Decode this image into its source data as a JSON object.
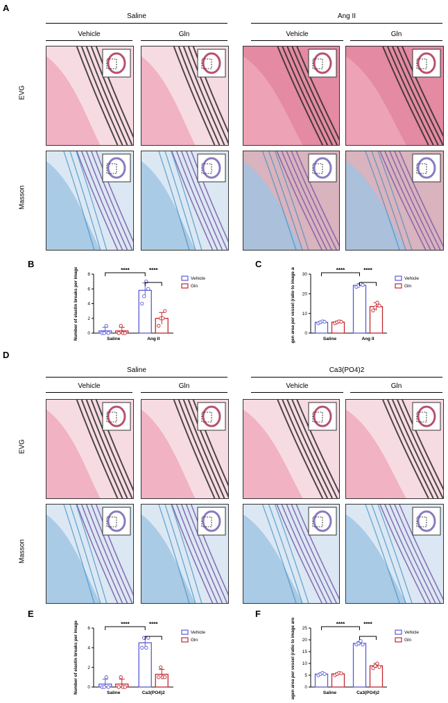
{
  "panels": {
    "A": "A",
    "B": "B",
    "C": "C",
    "D": "D",
    "E": "E",
    "F": "F"
  },
  "panel_A": {
    "groups": [
      "Saline",
      "Ang II"
    ],
    "subgroups": [
      "Vehicle",
      "Gln",
      "Vehicle",
      "Gln"
    ],
    "rows": [
      "EVG",
      "Masson"
    ]
  },
  "panel_D": {
    "groups": [
      "Saline",
      "Ca3(PO4)2"
    ],
    "subgroups": [
      "Vehicle",
      "Gln",
      "Vehicle",
      "Gln"
    ],
    "rows": [
      "EVG",
      "Masson"
    ]
  },
  "colors": {
    "vehicle": "#5a5ad6",
    "gln": "#c0272d",
    "evg_bg": "#f3c9d6",
    "masson_bg": "#b9d3ea",
    "fiber": "#2b2b2b"
  },
  "chart_data": [
    {
      "id": "B",
      "type": "bar",
      "categories": [
        "Saline",
        "Ang II"
      ],
      "ylabel": "Number of elastin breaks per image",
      "ylim": [
        0,
        8
      ],
      "yticks": [
        0,
        2,
        4,
        6,
        8
      ],
      "legend": "top-right",
      "significance": [
        "****",
        "****"
      ],
      "series": [
        {
          "name": "Vehicle",
          "values": [
            0.3,
            5.8
          ],
          "err": [
            0.5,
            1.0
          ],
          "points": [
            [
              0,
              0,
              1,
              0
            ],
            [
              4,
              5,
              7,
              6
            ]
          ]
        },
        {
          "name": "Gln",
          "values": [
            0.3,
            2.0
          ],
          "err": [
            0.5,
            0.8
          ],
          "points": [
            [
              0,
              1,
              0,
              0
            ],
            [
              1,
              2,
              2,
              3
            ]
          ]
        }
      ]
    },
    {
      "id": "C",
      "type": "bar",
      "categories": [
        "Saline",
        "Ang II"
      ],
      "ylabel": "Collagen area per vessel (ratio to image area, %)",
      "ylim": [
        0,
        30
      ],
      "yticks": [
        0,
        10,
        20,
        30
      ],
      "legend": "top-right",
      "significance": [
        "****",
        "****"
      ],
      "series": [
        {
          "name": "Vehicle",
          "values": [
            5.5,
            24.3
          ],
          "err": [
            0.6,
            1.0
          ],
          "points": [
            [
              5,
              5.5,
              6,
              5.8
            ],
            [
              23.5,
              24,
              25,
              24.5
            ]
          ]
        },
        {
          "name": "Gln",
          "values": [
            5.6,
            13.5
          ],
          "err": [
            0.6,
            2.0
          ],
          "points": [
            [
              5,
              5.5,
              6,
              5.8
            ],
            [
              11.5,
              13,
              15.5,
              14
            ]
          ]
        }
      ]
    },
    {
      "id": "E",
      "type": "bar",
      "categories": [
        "Saline",
        "Ca3(PO4)2"
      ],
      "ylabel": "Number of elastin breaks per image",
      "ylim": [
        0,
        6
      ],
      "yticks": [
        0,
        2,
        4,
        6
      ],
      "legend": "top-right",
      "significance": [
        "****",
        "****"
      ],
      "series": [
        {
          "name": "Vehicle",
          "values": [
            0.3,
            4.5
          ],
          "err": [
            0.5,
            0.6
          ],
          "points": [
            [
              0,
              0,
              1,
              0
            ],
            [
              4,
              5,
              4,
              5
            ]
          ]
        },
        {
          "name": "Gln",
          "values": [
            0.3,
            1.3
          ],
          "err": [
            0.5,
            0.5
          ],
          "points": [
            [
              0,
              1,
              0,
              0
            ],
            [
              1,
              2,
              1,
              1
            ]
          ]
        }
      ]
    },
    {
      "id": "F",
      "type": "bar",
      "categories": [
        "Saline",
        "Ca3(PO4)2"
      ],
      "ylabel": "Collagen area per vessel (ratio to image area, %)",
      "ylim": [
        0,
        25
      ],
      "yticks": [
        0,
        5,
        10,
        15,
        20,
        25
      ],
      "legend": "top-right",
      "significance": [
        "****",
        "****"
      ],
      "series": [
        {
          "name": "Vehicle",
          "values": [
            5.5,
            18.5
          ],
          "err": [
            0.6,
            0.8
          ],
          "points": [
            [
              5,
              5.5,
              6,
              5.5
            ],
            [
              18,
              18.5,
              19.5,
              18
            ]
          ]
        },
        {
          "name": "Gln",
          "values": [
            5.6,
            9.0
          ],
          "err": [
            0.5,
            1.0
          ],
          "points": [
            [
              5,
              5.5,
              6,
              5.8
            ],
            [
              8,
              9,
              10,
              8.5
            ]
          ]
        }
      ]
    }
  ]
}
